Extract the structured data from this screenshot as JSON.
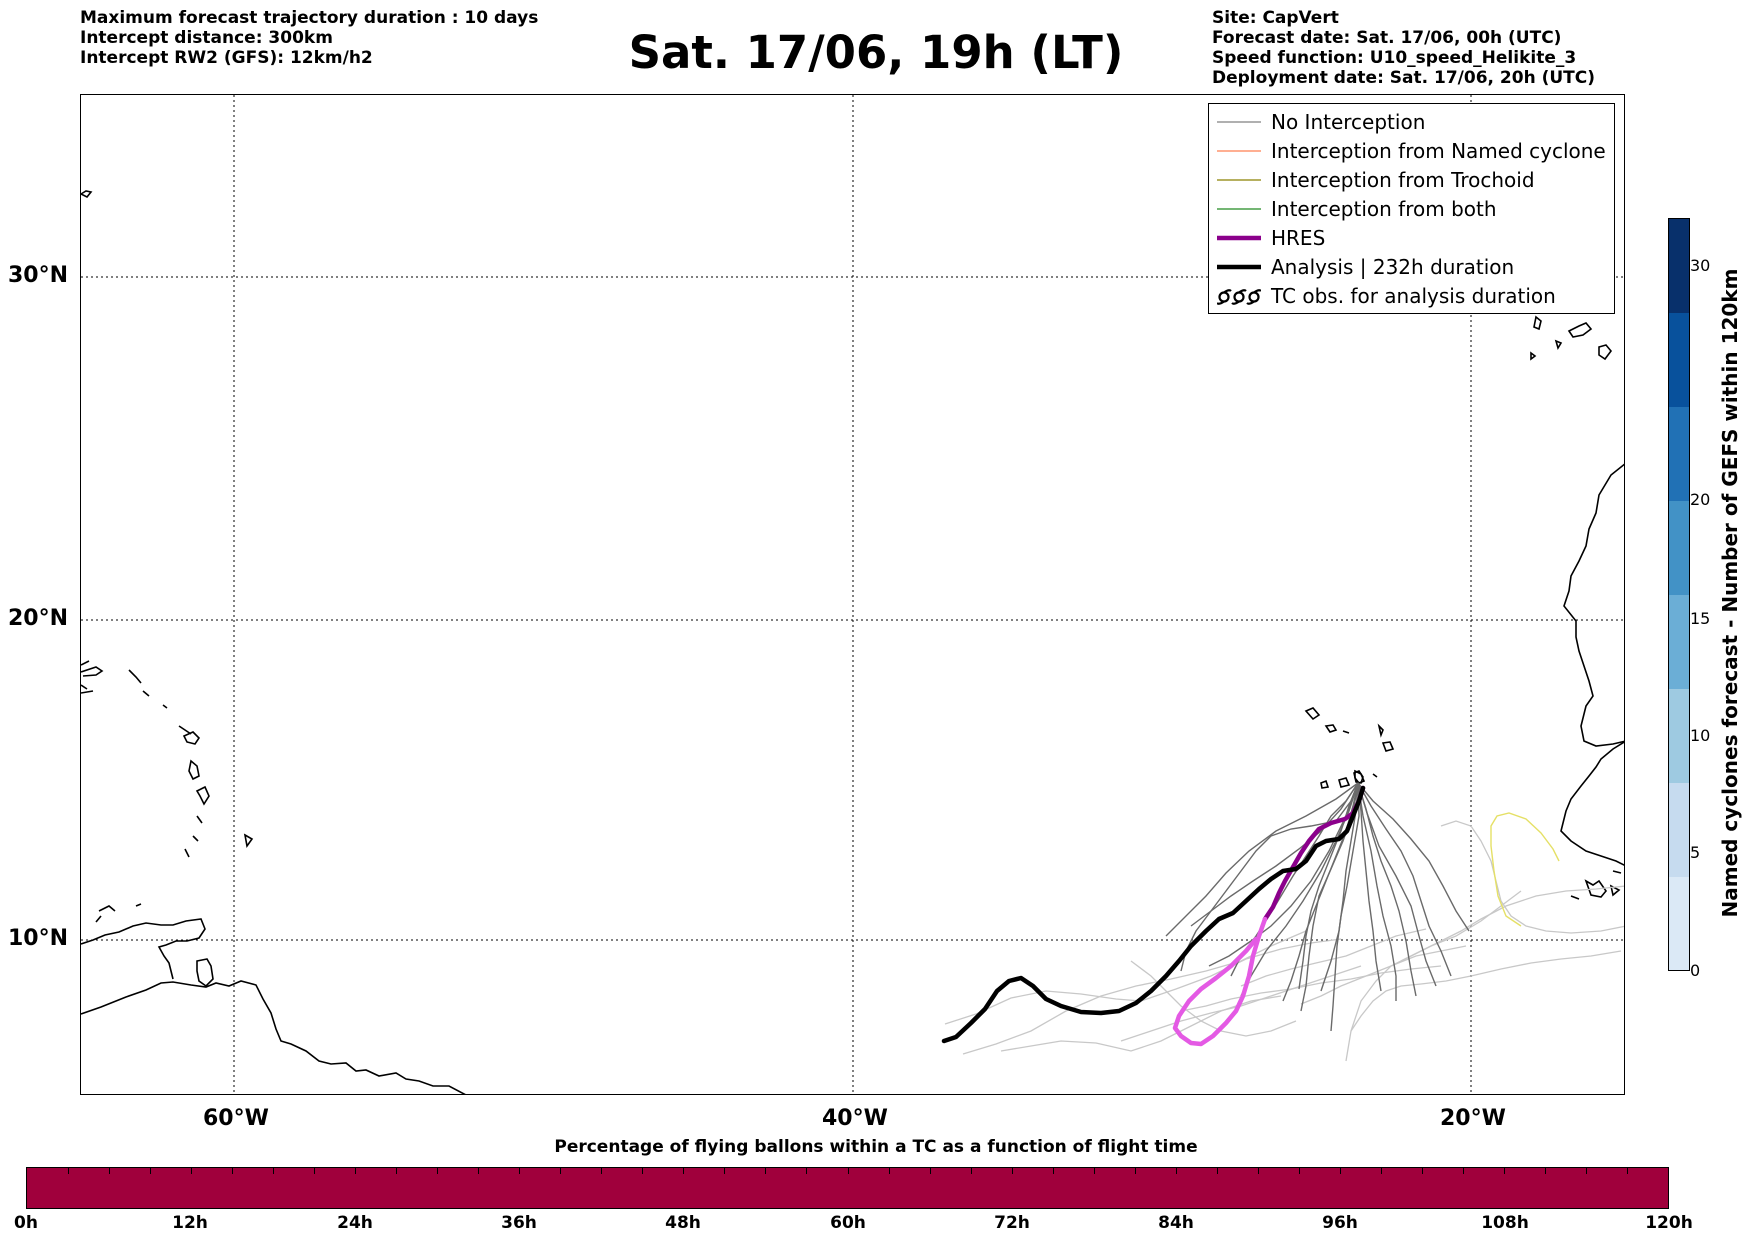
{
  "header": {
    "left_lines": [
      "Maximum forecast trajectory duration : 10 days",
      "Intercept distance: 300km",
      "Intercept RW2 (GFS):  12km/h2"
    ],
    "title": "Sat. 17/06, 19h (LT)",
    "right_lines": [
      "Site: CapVert",
      "Forecast date: Sat. 17/06, 00h (UTC)",
      "Speed function: U10_speed_Helikite_3",
      "Deployment date: Sat. 17/06, 20h (UTC)"
    ]
  },
  "map": {
    "lat_labels": [
      "30°N",
      "20°N",
      "10°N"
    ],
    "lon_labels": [
      "60°W",
      "40°W",
      "20°W"
    ],
    "coast_color": "#000000"
  },
  "legend": {
    "items": [
      {
        "label": "No Interception",
        "color": "#808080",
        "width": 1.2
      },
      {
        "label": "Interception from Named cyclone",
        "color": "#ff7f50",
        "width": 1.2
      },
      {
        "label": "Interception from Trochoid",
        "color": "#8b8000",
        "width": 1.2
      },
      {
        "label": "Interception from both",
        "color": "#228b22",
        "width": 1.2
      },
      {
        "label": "HRES",
        "color": "#8b008b",
        "width": 4
      },
      {
        "label": "Analysis | 232h duration",
        "color": "#000000",
        "width": 4
      },
      {
        "label": "TC obs. for analysis duration",
        "color": "#000000",
        "icon": "tc-symbol-icon"
      }
    ]
  },
  "colorbar_right": {
    "label": "Named cyclones forecast - Number of GEFS within 120km",
    "ticks": [
      "0",
      "5",
      "10",
      "15",
      "20",
      "30"
    ],
    "colors": [
      "#dbe9f6",
      "#c6dbef",
      "#9ecae1",
      "#6baed6",
      "#4292c6",
      "#2171b5",
      "#08519c",
      "#08306b"
    ]
  },
  "colorbar_bottom": {
    "title": "Percentage of flying ballons within a TC as a function of flight time",
    "ticks": [
      "0h",
      "12h",
      "24h",
      "36h",
      "48h",
      "60h",
      "72h",
      "84h",
      "96h",
      "108h",
      "120h"
    ],
    "color": "#a0003c"
  }
}
